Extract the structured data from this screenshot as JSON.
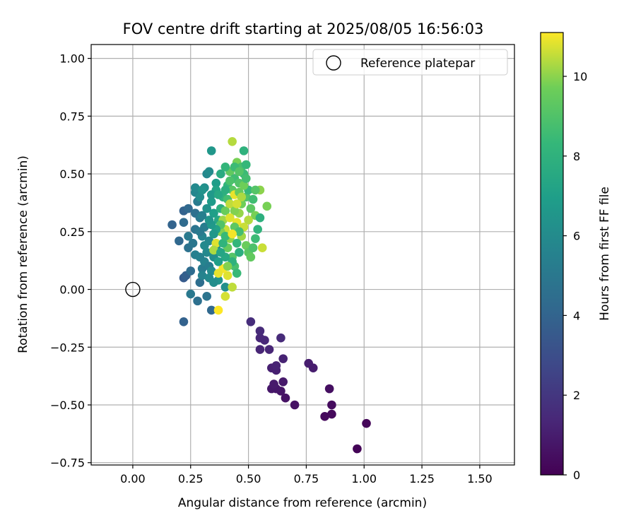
{
  "chart_data": {
    "type": "scatter",
    "title": "FOV centre drift starting at 2025/08/05 16:56:03",
    "xlabel": "Angular distance from reference (arcmin)",
    "ylabel": "Rotation from reference (arcmin)",
    "xlim": [
      -0.18,
      1.65
    ],
    "ylim": [
      -0.76,
      1.06
    ],
    "x_ticks": [
      "0.00",
      "0.25",
      "0.50",
      "0.75",
      "1.00",
      "1.25",
      "1.50"
    ],
    "y_ticks": [
      "1.00",
      "0.75",
      "0.50",
      "0.25",
      "0.00",
      "−0.25",
      "−0.50",
      "−0.75"
    ],
    "grid": true,
    "legend": {
      "placement": "top-right",
      "entries": [
        "Reference platepar"
      ]
    },
    "reference_point": {
      "x": 0.0,
      "y": 0.0,
      "marker": "open-circle"
    },
    "colorbar": {
      "label": "Hours from first FF file",
      "range": [
        0,
        11.1
      ],
      "ticks": [
        "0",
        "2",
        "4",
        "6",
        "8",
        "10"
      ],
      "colormap": "viridis"
    },
    "points": [
      {
        "x": 0.97,
        "y": -0.69,
        "t": 0.1
      },
      {
        "x": 1.01,
        "y": -0.58,
        "t": 0.2
      },
      {
        "x": 0.83,
        "y": -0.55,
        "t": 0.3
      },
      {
        "x": 0.86,
        "y": -0.54,
        "t": 0.3
      },
      {
        "x": 0.86,
        "y": -0.5,
        "t": 0.4
      },
      {
        "x": 0.85,
        "y": -0.43,
        "t": 0.5
      },
      {
        "x": 0.7,
        "y": -0.5,
        "t": 0.6
      },
      {
        "x": 0.66,
        "y": -0.47,
        "t": 0.6
      },
      {
        "x": 0.64,
        "y": -0.44,
        "t": 0.7
      },
      {
        "x": 0.62,
        "y": -0.43,
        "t": 0.8
      },
      {
        "x": 0.6,
        "y": -0.43,
        "t": 0.8
      },
      {
        "x": 0.61,
        "y": -0.41,
        "t": 0.9
      },
      {
        "x": 0.65,
        "y": -0.4,
        "t": 0.9
      },
      {
        "x": 0.78,
        "y": -0.34,
        "t": 1.0
      },
      {
        "x": 0.76,
        "y": -0.32,
        "t": 1.0
      },
      {
        "x": 0.6,
        "y": -0.34,
        "t": 1.1
      },
      {
        "x": 0.62,
        "y": -0.35,
        "t": 1.1
      },
      {
        "x": 0.62,
        "y": -0.33,
        "t": 1.2
      },
      {
        "x": 0.65,
        "y": -0.3,
        "t": 1.2
      },
      {
        "x": 0.59,
        "y": -0.26,
        "t": 1.3
      },
      {
        "x": 0.55,
        "y": -0.26,
        "t": 1.3
      },
      {
        "x": 0.57,
        "y": -0.22,
        "t": 1.4
      },
      {
        "x": 0.55,
        "y": -0.21,
        "t": 1.4
      },
      {
        "x": 0.64,
        "y": -0.21,
        "t": 1.5
      },
      {
        "x": 0.55,
        "y": -0.18,
        "t": 1.5
      },
      {
        "x": 0.51,
        "y": -0.14,
        "t": 1.6
      },
      {
        "x": 0.22,
        "y": -0.14,
        "t": 3.9
      },
      {
        "x": 0.34,
        "y": -0.09,
        "t": 4.2
      },
      {
        "x": 0.28,
        "y": -0.05,
        "t": 4.6
      },
      {
        "x": 0.32,
        "y": -0.03,
        "t": 4.8
      },
      {
        "x": 0.25,
        "y": -0.02,
        "t": 5.0
      },
      {
        "x": 0.22,
        "y": 0.05,
        "t": 3.6
      },
      {
        "x": 0.23,
        "y": 0.06,
        "t": 3.8
      },
      {
        "x": 0.25,
        "y": 0.08,
        "t": 4.4
      },
      {
        "x": 0.29,
        "y": 0.03,
        "t": 4.5
      },
      {
        "x": 0.3,
        "y": 0.09,
        "t": 5.2
      },
      {
        "x": 0.31,
        "y": 0.12,
        "t": 5.6
      },
      {
        "x": 0.33,
        "y": 0.1,
        "t": 5.3
      },
      {
        "x": 0.27,
        "y": 0.15,
        "t": 5.4
      },
      {
        "x": 0.24,
        "y": 0.18,
        "t": 4.7
      },
      {
        "x": 0.26,
        "y": 0.2,
        "t": 4.9
      },
      {
        "x": 0.2,
        "y": 0.21,
        "t": 4.2
      },
      {
        "x": 0.24,
        "y": 0.23,
        "t": 5.1
      },
      {
        "x": 0.17,
        "y": 0.28,
        "t": 4.0
      },
      {
        "x": 0.22,
        "y": 0.29,
        "t": 4.3
      },
      {
        "x": 0.27,
        "y": 0.26,
        "t": 4.8
      },
      {
        "x": 0.22,
        "y": 0.34,
        "t": 3.9
      },
      {
        "x": 0.24,
        "y": 0.35,
        "t": 4.2
      },
      {
        "x": 0.27,
        "y": 0.33,
        "t": 4.6
      },
      {
        "x": 0.29,
        "y": 0.31,
        "t": 5.0
      },
      {
        "x": 0.31,
        "y": 0.27,
        "t": 5.3
      },
      {
        "x": 0.3,
        "y": 0.23,
        "t": 5.6
      },
      {
        "x": 0.33,
        "y": 0.21,
        "t": 5.8
      },
      {
        "x": 0.32,
        "y": 0.16,
        "t": 5.9
      },
      {
        "x": 0.35,
        "y": 0.14,
        "t": 6.1
      },
      {
        "x": 0.36,
        "y": 0.18,
        "t": 6.3
      },
      {
        "x": 0.34,
        "y": 0.08,
        "t": 6.0
      },
      {
        "x": 0.37,
        "y": 0.04,
        "t": 6.4
      },
      {
        "x": 0.4,
        "y": 0.01,
        "t": 6.2
      },
      {
        "x": 0.28,
        "y": 0.38,
        "t": 5.2
      },
      {
        "x": 0.27,
        "y": 0.42,
        "t": 5.7
      },
      {
        "x": 0.27,
        "y": 0.44,
        "t": 5.9
      },
      {
        "x": 0.31,
        "y": 0.44,
        "t": 6.2
      },
      {
        "x": 0.32,
        "y": 0.5,
        "t": 5.8
      },
      {
        "x": 0.33,
        "y": 0.51,
        "t": 6.0
      },
      {
        "x": 0.34,
        "y": 0.6,
        "t": 6.6
      },
      {
        "x": 0.36,
        "y": 0.46,
        "t": 6.9
      },
      {
        "x": 0.38,
        "y": 0.5,
        "t": 7.6
      },
      {
        "x": 0.36,
        "y": 0.43,
        "t": 7.2
      },
      {
        "x": 0.34,
        "y": 0.38,
        "t": 6.8
      },
      {
        "x": 0.35,
        "y": 0.33,
        "t": 7.0
      },
      {
        "x": 0.37,
        "y": 0.3,
        "t": 7.4
      },
      {
        "x": 0.38,
        "y": 0.35,
        "t": 7.8
      },
      {
        "x": 0.39,
        "y": 0.4,
        "t": 8.0
      },
      {
        "x": 0.41,
        "y": 0.45,
        "t": 8.2
      },
      {
        "x": 0.42,
        "y": 0.51,
        "t": 9.4
      },
      {
        "x": 0.43,
        "y": 0.64,
        "t": 10.4
      },
      {
        "x": 0.44,
        "y": 0.48,
        "t": 8.6
      },
      {
        "x": 0.45,
        "y": 0.55,
        "t": 9.8
      },
      {
        "x": 0.47,
        "y": 0.53,
        "t": 8.8
      },
      {
        "x": 0.48,
        "y": 0.6,
        "t": 8.0
      },
      {
        "x": 0.49,
        "y": 0.54,
        "t": 8.3
      },
      {
        "x": 0.48,
        "y": 0.5,
        "t": 8.5
      },
      {
        "x": 0.46,
        "y": 0.46,
        "t": 9.0
      },
      {
        "x": 0.43,
        "y": 0.43,
        "t": 9.2
      },
      {
        "x": 0.41,
        "y": 0.39,
        "t": 8.7
      },
      {
        "x": 0.4,
        "y": 0.34,
        "t": 9.6
      },
      {
        "x": 0.39,
        "y": 0.3,
        "t": 10.2
      },
      {
        "x": 0.4,
        "y": 0.26,
        "t": 10.6
      },
      {
        "x": 0.42,
        "y": 0.22,
        "t": 10.0
      },
      {
        "x": 0.41,
        "y": 0.18,
        "t": 9.5
      },
      {
        "x": 0.43,
        "y": 0.14,
        "t": 9.1
      },
      {
        "x": 0.44,
        "y": 0.1,
        "t": 8.8
      },
      {
        "x": 0.45,
        "y": 0.07,
        "t": 8.4
      },
      {
        "x": 0.41,
        "y": 0.06,
        "t": 10.8
      },
      {
        "x": 0.39,
        "y": 0.09,
        "t": 11.0
      },
      {
        "x": 0.37,
        "y": 0.07,
        "t": 10.9
      },
      {
        "x": 0.4,
        "y": -0.03,
        "t": 10.7
      },
      {
        "x": 0.37,
        "y": -0.09,
        "t": 11.1
      },
      {
        "x": 0.43,
        "y": 0.01,
        "t": 10.5
      },
      {
        "x": 0.36,
        "y": 0.2,
        "t": 10.8
      },
      {
        "x": 0.35,
        "y": 0.17,
        "t": 10.3
      },
      {
        "x": 0.38,
        "y": 0.25,
        "t": 9.9
      },
      {
        "x": 0.45,
        "y": 0.29,
        "t": 10.9
      },
      {
        "x": 0.46,
        "y": 0.33,
        "t": 10.1
      },
      {
        "x": 0.47,
        "y": 0.37,
        "t": 9.7
      },
      {
        "x": 0.49,
        "y": 0.4,
        "t": 9.0
      },
      {
        "x": 0.5,
        "y": 0.43,
        "t": 8.3
      },
      {
        "x": 0.52,
        "y": 0.39,
        "t": 8.6
      },
      {
        "x": 0.51,
        "y": 0.35,
        "t": 9.3
      },
      {
        "x": 0.53,
        "y": 0.32,
        "t": 9.8
      },
      {
        "x": 0.5,
        "y": 0.3,
        "t": 10.4
      },
      {
        "x": 0.48,
        "y": 0.27,
        "t": 10.6
      },
      {
        "x": 0.47,
        "y": 0.23,
        "t": 10.2
      },
      {
        "x": 0.49,
        "y": 0.19,
        "t": 9.6
      },
      {
        "x": 0.5,
        "y": 0.16,
        "t": 9.2
      },
      {
        "x": 0.52,
        "y": 0.18,
        "t": 8.9
      },
      {
        "x": 0.51,
        "y": 0.14,
        "t": 9.4
      },
      {
        "x": 0.53,
        "y": 0.22,
        "t": 8.5
      },
      {
        "x": 0.54,
        "y": 0.26,
        "t": 8.1
      },
      {
        "x": 0.55,
        "y": 0.31,
        "t": 7.9
      },
      {
        "x": 0.55,
        "y": 0.43,
        "t": 10.0
      },
      {
        "x": 0.53,
        "y": 0.43,
        "t": 9.1
      },
      {
        "x": 0.58,
        "y": 0.36,
        "t": 9.8
      },
      {
        "x": 0.56,
        "y": 0.18,
        "t": 10.6
      },
      {
        "x": 0.44,
        "y": 0.41,
        "t": 10.9
      },
      {
        "x": 0.42,
        "y": 0.37,
        "t": 10.5
      },
      {
        "x": 0.44,
        "y": 0.34,
        "t": 9.9
      },
      {
        "x": 0.42,
        "y": 0.31,
        "t": 10.8
      },
      {
        "x": 0.44,
        "y": 0.27,
        "t": 9.3
      },
      {
        "x": 0.46,
        "y": 0.25,
        "t": 8.7
      },
      {
        "x": 0.45,
        "y": 0.2,
        "t": 8.2
      },
      {
        "x": 0.46,
        "y": 0.16,
        "t": 7.8
      },
      {
        "x": 0.43,
        "y": 0.12,
        "t": 8.0
      },
      {
        "x": 0.4,
        "y": 0.14,
        "t": 7.5
      },
      {
        "x": 0.38,
        "y": 0.16,
        "t": 7.3
      },
      {
        "x": 0.37,
        "y": 0.12,
        "t": 7.0
      },
      {
        "x": 0.39,
        "y": 0.2,
        "t": 8.1
      },
      {
        "x": 0.4,
        "y": 0.23,
        "t": 8.4
      },
      {
        "x": 0.38,
        "y": 0.28,
        "t": 9.0
      },
      {
        "x": 0.36,
        "y": 0.26,
        "t": 7.1
      },
      {
        "x": 0.34,
        "y": 0.28,
        "t": 6.7
      },
      {
        "x": 0.33,
        "y": 0.3,
        "t": 6.5
      },
      {
        "x": 0.32,
        "y": 0.35,
        "t": 6.3
      },
      {
        "x": 0.34,
        "y": 0.41,
        "t": 6.7
      },
      {
        "x": 0.37,
        "y": 0.41,
        "t": 7.5
      },
      {
        "x": 0.4,
        "y": 0.43,
        "t": 7.8
      },
      {
        "x": 0.42,
        "y": 0.47,
        "t": 8.9
      },
      {
        "x": 0.46,
        "y": 0.42,
        "t": 9.5
      },
      {
        "x": 0.48,
        "y": 0.45,
        "t": 9.7
      },
      {
        "x": 0.47,
        "y": 0.4,
        "t": 10.3
      },
      {
        "x": 0.45,
        "y": 0.37,
        "t": 10.7
      },
      {
        "x": 0.43,
        "y": 0.24,
        "t": 11.0
      },
      {
        "x": 0.41,
        "y": 0.1,
        "t": 9.9
      },
      {
        "x": 0.35,
        "y": 0.24,
        "t": 6.6
      },
      {
        "x": 0.31,
        "y": 0.19,
        "t": 5.9
      },
      {
        "x": 0.29,
        "y": 0.14,
        "t": 5.5
      },
      {
        "x": 0.3,
        "y": 0.06,
        "t": 5.6
      },
      {
        "x": 0.33,
        "y": 0.05,
        "t": 5.9
      },
      {
        "x": 0.35,
        "y": 0.03,
        "t": 6.1
      },
      {
        "x": 0.29,
        "y": 0.25,
        "t": 5.1
      },
      {
        "x": 0.3,
        "y": 0.32,
        "t": 5.4
      },
      {
        "x": 0.29,
        "y": 0.4,
        "t": 6.1
      },
      {
        "x": 0.3,
        "y": 0.43,
        "t": 6.4
      },
      {
        "x": 0.4,
        "y": 0.53,
        "t": 8.2
      },
      {
        "x": 0.44,
        "y": 0.53,
        "t": 8.5
      },
      {
        "x": 0.46,
        "y": 0.51,
        "t": 9.1
      },
      {
        "x": 0.49,
        "y": 0.48,
        "t": 8.7
      }
    ]
  }
}
